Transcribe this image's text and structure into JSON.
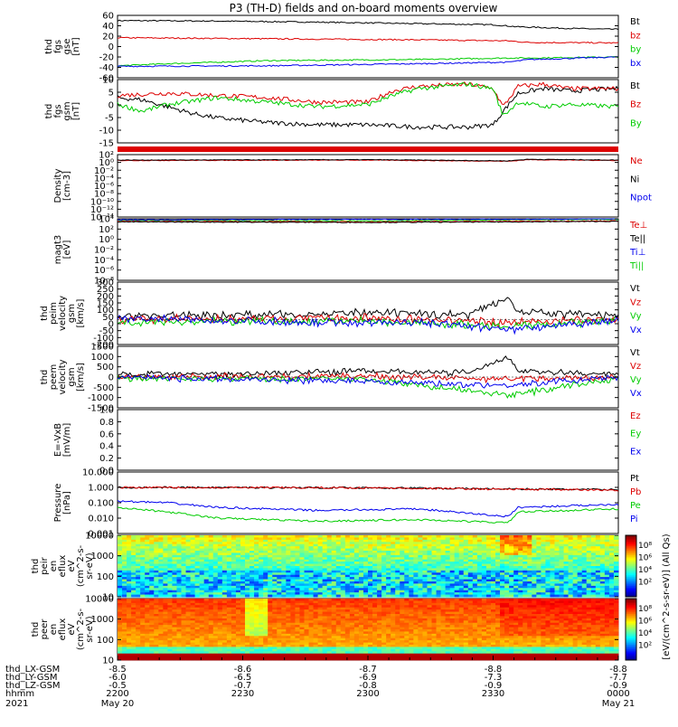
{
  "title": "P3 (TH-D) fields and on-board moments overview",
  "colors": {
    "black": "#000000",
    "red": "#dd0000",
    "green": "#00cc00",
    "blue": "#0000ee"
  },
  "chart_data": [
    {
      "type": "line",
      "ylabel": [
        "thd",
        "fgs",
        "gse",
        "[nT]"
      ],
      "yticks": [
        "60",
        "40",
        "20",
        "0",
        "-20",
        "-40",
        "-60"
      ],
      "ylim": [
        -60,
        60
      ],
      "legend": [
        "Bt",
        "bz",
        "by",
        "bx"
      ],
      "series": [
        {
          "name": "Bt",
          "color": "black",
          "x": [
            0,
            0.2,
            0.4,
            0.6,
            0.75,
            0.8,
            0.9,
            1.0
          ],
          "y": [
            50,
            49,
            47,
            44,
            42,
            38,
            35,
            33
          ]
        },
        {
          "name": "bz",
          "color": "red",
          "x": [
            0,
            0.3,
            0.6,
            0.78,
            0.82,
            1.0
          ],
          "y": [
            17,
            15,
            13,
            11,
            8,
            7
          ]
        },
        {
          "name": "by",
          "color": "green",
          "x": [
            0,
            0.1,
            0.3,
            0.6,
            0.78,
            0.82,
            1.0
          ],
          "y": [
            -37,
            -33,
            -27,
            -25,
            -22,
            -22,
            -20
          ]
        },
        {
          "name": "bx",
          "color": "blue",
          "x": [
            0,
            0.3,
            0.6,
            0.78,
            0.82,
            1.0
          ],
          "y": [
            -38,
            -37,
            -33,
            -30,
            -25,
            -20
          ]
        }
      ]
    },
    {
      "type": "line",
      "ylabel": [
        "thd",
        "fgs",
        "gsm",
        "[nT]"
      ],
      "yticks": [
        "10",
        "5",
        "0",
        "-5",
        "-10",
        "-15"
      ],
      "ylim": [
        -18,
        10
      ],
      "legend": [
        "Bt",
        "Bz",
        "By"
      ],
      "series": [
        {
          "name": "Bt",
          "color": "black",
          "x": [
            0,
            0.05,
            0.1,
            0.15,
            0.2,
            0.25,
            0.3,
            0.4,
            0.5,
            0.6,
            0.7,
            0.75,
            0.77,
            0.8,
            0.85,
            0.9,
            1.0
          ],
          "y": [
            2,
            1,
            -2,
            -5,
            -7,
            -8,
            -9,
            -10,
            -10,
            -11,
            -11,
            -10,
            -4,
            4,
            6,
            5,
            6
          ]
        },
        {
          "name": "Bz",
          "color": "red",
          "x": [
            0,
            0.1,
            0.2,
            0.3,
            0.4,
            0.5,
            0.55,
            0.6,
            0.7,
            0.75,
            0.77,
            0.8,
            0.85,
            0.9,
            1.0
          ],
          "y": [
            3,
            4,
            3,
            2,
            0,
            0,
            5,
            7,
            8,
            6,
            -2,
            7,
            8,
            6,
            6
          ]
        },
        {
          "name": "By",
          "color": "green",
          "x": [
            0,
            0.05,
            0.1,
            0.2,
            0.3,
            0.4,
            0.5,
            0.55,
            0.6,
            0.7,
            0.75,
            0.77,
            0.8,
            0.85,
            0.9,
            1.0
          ],
          "y": [
            -1,
            -4,
            -1,
            2,
            0,
            -2,
            -1,
            3,
            6,
            8,
            6,
            -6,
            0,
            -2,
            -1,
            -2
          ]
        }
      ]
    },
    {
      "type": "line",
      "ylabel": [
        "Density",
        "[cm-3]"
      ],
      "yticks": [
        "10²",
        "10⁰",
        "10⁻²",
        "10⁻⁴",
        "10⁻⁶",
        "10⁻⁸",
        "10⁻¹⁰",
        "10⁻¹²",
        "10⁻¹⁴"
      ],
      "ylim": [
        -14,
        2
      ],
      "log": true,
      "legend": [
        "Ne",
        "Ni",
        "Npot"
      ],
      "series": [
        {
          "name": "Ne",
          "color": "red",
          "x": [
            0,
            0.5,
            0.78,
            0.82,
            1.0
          ],
          "y": [
            0.5,
            0.6,
            0.3,
            0.7,
            0.5
          ]
        },
        {
          "name": "Ni",
          "color": "black",
          "x": [
            0,
            0.5,
            0.78,
            0.82,
            1.0
          ],
          "y": [
            0.6,
            0.7,
            0.4,
            0.8,
            0.6
          ]
        }
      ]
    },
    {
      "type": "line",
      "ylabel": [
        "magt3",
        "[eV]"
      ],
      "yticks": [
        "10⁴",
        "10²",
        "10⁰",
        "10⁻²",
        "10⁻⁴",
        "10⁻⁶",
        "10⁻⁸"
      ],
      "ylim": [
        -8,
        4
      ],
      "log": true,
      "legend": [
        "Te⊥",
        "Te||",
        "Ti⊥",
        "Ti||"
      ],
      "series": [
        {
          "name": "Ti||",
          "color": "green",
          "x": [
            0,
            0.5,
            0.78,
            1.0
          ],
          "y": [
            3.7,
            3.6,
            3.8,
            3.9
          ]
        },
        {
          "name": "Te⊥",
          "color": "red",
          "x": [
            0,
            0.5,
            0.78,
            1.0
          ],
          "y": [
            3.5,
            3.4,
            3.5,
            3.6
          ]
        },
        {
          "name": "Te||",
          "color": "black",
          "x": [
            0,
            0.5,
            0.78,
            1.0
          ],
          "y": [
            3.4,
            3.3,
            3.4,
            3.5
          ]
        },
        {
          "name": "Ti⊥",
          "color": "blue",
          "x": [
            0,
            0.5,
            0.78,
            1.0
          ],
          "y": [
            3.8,
            3.9,
            3.9,
            4.0
          ]
        }
      ]
    },
    {
      "type": "line",
      "ylabel": [
        "thd",
        "peim",
        "velocity",
        "gsm",
        "[km/s]"
      ],
      "yticks": [
        "300",
        "250",
        "200",
        "150",
        "100",
        "50",
        "0",
        "-50",
        "-100",
        "-200"
      ],
      "ylim": [
        -200,
        300
      ],
      "legend": [
        "Vt",
        "Vz",
        "Vy",
        "Vx"
      ],
      "series": [
        {
          "name": "Vt",
          "color": "black",
          "x": [
            0,
            0.3,
            0.5,
            0.7,
            0.76,
            0.78,
            0.8,
            1.0
          ],
          "y": [
            30,
            40,
            50,
            40,
            150,
            180,
            60,
            30
          ]
        },
        {
          "name": "Vz",
          "color": "red",
          "x": [
            0,
            0.5,
            0.78,
            1.0
          ],
          "y": [
            0,
            10,
            -20,
            0
          ]
        },
        {
          "name": "Vy",
          "color": "green",
          "x": [
            0,
            0.5,
            0.78,
            1.0
          ],
          "y": [
            -20,
            -10,
            -60,
            -10
          ]
        },
        {
          "name": "Vx",
          "color": "blue",
          "x": [
            0,
            0.5,
            0.6,
            0.78,
            1.0
          ],
          "y": [
            10,
            -30,
            -20,
            -80,
            0
          ]
        }
      ]
    },
    {
      "type": "line",
      "ylabel": [
        "thd",
        "peem",
        "velocity",
        "gsm",
        "[km/s]"
      ],
      "yticks": [
        "1500",
        "1000",
        "500",
        "0",
        "-500",
        "-1000",
        "-1500"
      ],
      "ylim": [
        -1500,
        1500
      ],
      "legend": [
        "Vt",
        "Vz",
        "Vy",
        "Vx"
      ],
      "series": [
        {
          "name": "Vt",
          "color": "black",
          "x": [
            0,
            0.3,
            0.5,
            0.7,
            0.78,
            0.8,
            1.0
          ],
          "y": [
            100,
            200,
            300,
            200,
            1000,
            300,
            100
          ]
        },
        {
          "name": "Vz",
          "color": "red",
          "x": [
            0,
            0.5,
            0.78,
            1.0
          ],
          "y": [
            0,
            50,
            -100,
            0
          ]
        },
        {
          "name": "Vy",
          "color": "green",
          "x": [
            0,
            0.5,
            0.78,
            1.0
          ],
          "y": [
            -50,
            -100,
            -900,
            -50
          ]
        },
        {
          "name": "Vx",
          "color": "blue",
          "x": [
            0,
            0.5,
            0.78,
            1.0
          ],
          "y": [
            -20,
            -200,
            -400,
            -20
          ]
        }
      ]
    },
    {
      "type": "line",
      "ylabel": [
        "E=-VxB",
        "[mV/m]"
      ],
      "yticks": [
        "1.0",
        "0.8",
        "0.6",
        "0.4",
        "0.2",
        "0.0"
      ],
      "ylim": [
        0,
        1
      ],
      "legend": [
        "Ez",
        "Ey",
        "Ex"
      ],
      "series": []
    },
    {
      "type": "line",
      "ylabel": [
        "Pressure",
        "[nPa]"
      ],
      "yticks": [
        "10.000",
        "1.000",
        "0.100",
        "0.010",
        "0.001"
      ],
      "ylim": [
        -3,
        1
      ],
      "log": true,
      "legend": [
        "Pt",
        "Pb",
        "Pe",
        "Pi"
      ],
      "series": [
        {
          "name": "Pt",
          "color": "black",
          "x": [
            0,
            0.5,
            0.78,
            1.0
          ],
          "y": [
            0,
            -0.02,
            -0.1,
            -0.15
          ]
        },
        {
          "name": "Pb",
          "color": "red",
          "x": [
            0,
            0.5,
            0.78,
            1.0
          ],
          "y": [
            0,
            -0.03,
            -0.12,
            -0.18
          ]
        },
        {
          "name": "Pi",
          "color": "blue",
          "x": [
            0,
            0.1,
            0.2,
            0.4,
            0.6,
            0.78,
            0.8,
            1.0
          ],
          "y": [
            -0.9,
            -1.0,
            -1.3,
            -1.5,
            -1.4,
            -1.9,
            -1.3,
            -1.1
          ]
        },
        {
          "name": "Pe",
          "color": "green",
          "x": [
            0,
            0.1,
            0.2,
            0.4,
            0.6,
            0.78,
            0.8,
            1.0
          ],
          "y": [
            -1.3,
            -1.6,
            -2.0,
            -2.2,
            -2.1,
            -2.3,
            -1.6,
            -1.4
          ]
        }
      ]
    },
    {
      "type": "heatmap",
      "ylabel": [
        "thd",
        "peir",
        "en",
        "eflux",
        "eV",
        "(cm^2-s-",
        "sr-eV)"
      ],
      "yticks": [
        "10000",
        "1000",
        "100",
        "10"
      ],
      "colorbar": [
        "10⁸",
        "10⁶",
        "10⁴",
        "10²"
      ]
    },
    {
      "type": "heatmap",
      "ylabel": [
        "thd",
        "peer",
        "en",
        "eflux",
        "eV",
        "(cm^2-s-",
        "sr-eV)"
      ],
      "yticks": [
        "10000",
        "1000",
        "100",
        "10"
      ],
      "colorbar": [
        "10⁸",
        "10⁶",
        "10⁴",
        "10²"
      ]
    }
  ],
  "colorbar_label": "[eV/(cm^2-s-sr-eV)] (All Qs)",
  "xaxis": {
    "row_labels": [
      "thd_LX-GSM",
      "thd_LY-GSM",
      "thd_LZ-GSM",
      "hhmm",
      "2021"
    ],
    "ticks": [
      {
        "lx": "-8.5",
        "ly": "-6.0",
        "lz": "-0.5",
        "hhmm": "2200",
        "date": "May 20"
      },
      {
        "lx": "-8.6",
        "ly": "-6.5",
        "lz": "-0.7",
        "hhmm": "2230",
        "date": ""
      },
      {
        "lx": "-8.7",
        "ly": "-6.9",
        "lz": "-0.8",
        "hhmm": "2300",
        "date": ""
      },
      {
        "lx": "-8.8",
        "ly": "-7.3",
        "lz": "-0.9",
        "hhmm": "2330",
        "date": ""
      },
      {
        "lx": "-8.8",
        "ly": "-7.7",
        "lz": "-0.9",
        "hhmm": "0000",
        "date": "May 21"
      }
    ]
  }
}
